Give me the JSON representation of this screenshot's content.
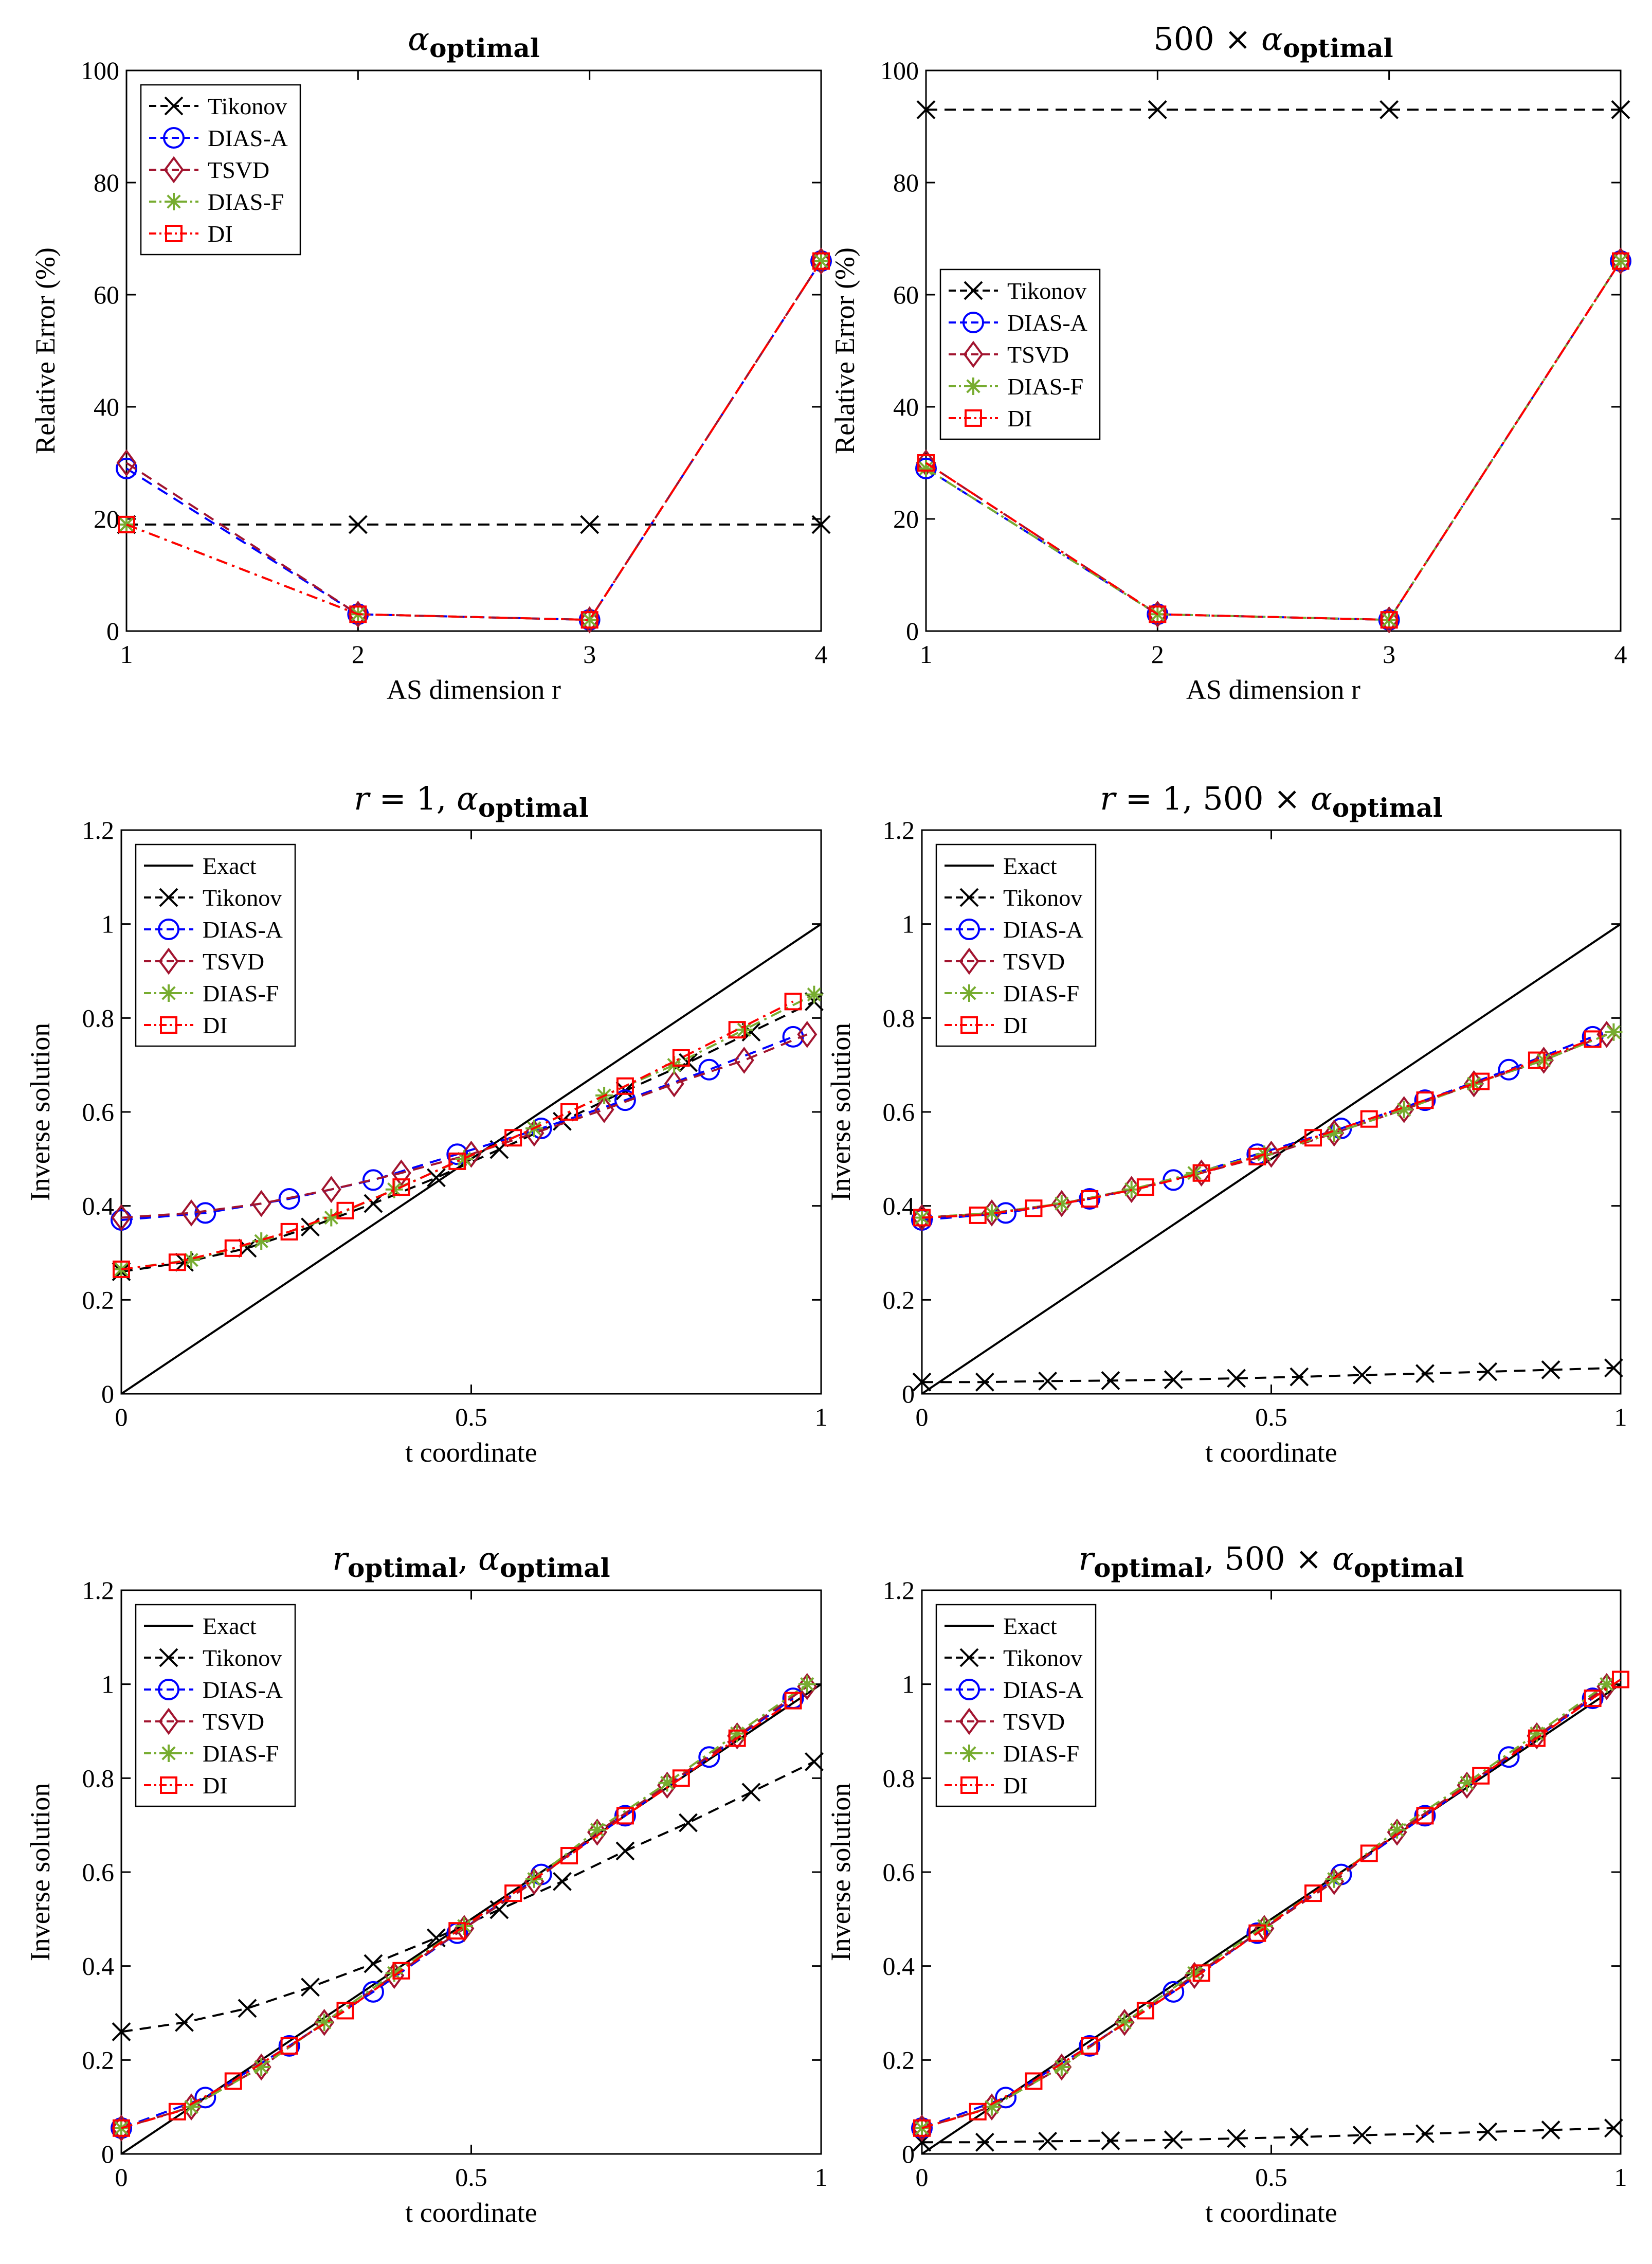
{
  "colors": {
    "exact": "#000000",
    "tikonov": "#000000",
    "dias_a": "#0000ff",
    "tsvd": "#a2142f",
    "dias_f": "#77ac30",
    "di": "#ff0000"
  },
  "series_names": {
    "exact": "Exact",
    "tikonov": "Tikonov",
    "dias_a": "DIAS-A",
    "tsvd": "TSVD",
    "dias_f": "DIAS-F",
    "di": "DI"
  },
  "chart_data": [
    {
      "type": "line",
      "title": {
        "main": "α",
        "sub": "optimal",
        "prefix": ""
      },
      "xlabel": "AS dimension r",
      "ylabel": "Relative Error (%)",
      "xlim": [
        1,
        4
      ],
      "ylim": [
        0,
        100
      ],
      "xticks": [
        1,
        2,
        3,
        4
      ],
      "xtick_labels": [
        "1",
        "2",
        "3",
        "4"
      ],
      "yticks": [
        0,
        20,
        40,
        60,
        80,
        100
      ],
      "ytick_labels": [
        "0",
        "20",
        "40",
        "60",
        "80",
        "100"
      ],
      "legend_position": "top-left",
      "legend": [
        "Tikonov",
        "DIAS-A",
        "TSVD",
        "DIAS-F",
        "DI"
      ],
      "series": [
        {
          "name": "Tikonov",
          "key": "tikonov",
          "x": [
            1,
            2,
            3,
            4
          ],
          "values": [
            19,
            19,
            19,
            19
          ]
        },
        {
          "name": "DIAS-A",
          "key": "dias_a",
          "x": [
            1,
            2,
            3,
            4
          ],
          "values": [
            29,
            3,
            2,
            66
          ]
        },
        {
          "name": "TSVD",
          "key": "tsvd",
          "x": [
            1,
            2,
            3,
            4
          ],
          "values": [
            30,
            3,
            2,
            66
          ]
        },
        {
          "name": "DIAS-F",
          "key": "dias_f",
          "x": [
            1,
            2,
            3,
            4
          ],
          "values": [
            19,
            3,
            2,
            66
          ]
        },
        {
          "name": "DI",
          "key": "di",
          "x": [
            1,
            2,
            3,
            4
          ],
          "values": [
            19,
            3,
            2,
            66
          ]
        }
      ]
    },
    {
      "type": "line",
      "title": {
        "main": "α",
        "sub": "optimal",
        "prefix": "500 × "
      },
      "xlabel": "AS dimension r",
      "ylabel": "Relative Error (%)",
      "xlim": [
        1,
        4
      ],
      "ylim": [
        0,
        100
      ],
      "xticks": [
        1,
        2,
        3,
        4
      ],
      "xtick_labels": [
        "1",
        "2",
        "3",
        "4"
      ],
      "yticks": [
        0,
        20,
        40,
        60,
        80,
        100
      ],
      "ytick_labels": [
        "0",
        "20",
        "40",
        "60",
        "80",
        "100"
      ],
      "legend_position": "middle-left",
      "legend": [
        "Tikonov",
        "DIAS-A",
        "TSVD",
        "DIAS-F",
        "DI"
      ],
      "series": [
        {
          "name": "Tikonov",
          "key": "tikonov",
          "x": [
            1,
            2,
            3,
            4
          ],
          "values": [
            93,
            93,
            93,
            93
          ]
        },
        {
          "name": "DIAS-A",
          "key": "dias_a",
          "x": [
            1,
            2,
            3,
            4
          ],
          "values": [
            29,
            3,
            2,
            66
          ]
        },
        {
          "name": "TSVD",
          "key": "tsvd",
          "x": [
            1,
            2,
            3,
            4
          ],
          "values": [
            30,
            3,
            2,
            66
          ]
        },
        {
          "name": "DIAS-F",
          "key": "dias_f",
          "x": [
            1,
            2,
            3,
            4
          ],
          "values": [
            29,
            3,
            2,
            66
          ]
        },
        {
          "name": "DI",
          "key": "di",
          "x": [
            1,
            2,
            3,
            4
          ],
          "values": [
            30,
            3,
            2,
            66
          ]
        }
      ]
    },
    {
      "type": "line",
      "title": {
        "main": "α",
        "sub": "optimal",
        "prefix": "r = 1, "
      },
      "xlabel": "t coordinate",
      "ylabel": "Inverse solution",
      "xlim": [
        0,
        1
      ],
      "ylim": [
        0,
        1.2
      ],
      "xticks": [
        0,
        0.5,
        1
      ],
      "xtick_labels": [
        "0",
        "0.5",
        "1"
      ],
      "yticks": [
        0,
        0.2,
        0.4,
        0.6,
        0.8,
        1,
        1.2
      ],
      "ytick_labels": [
        "0",
        "0.2",
        "0.4",
        "0.6",
        "0.8",
        "1",
        "1.2"
      ],
      "legend_position": "top-left",
      "legend": [
        "Exact",
        "Tikonov",
        "DIAS-A",
        "TSVD",
        "DIAS-F",
        "DI"
      ],
      "series": [
        {
          "name": "Exact",
          "key": "exact",
          "x": [
            0,
            1
          ],
          "values": [
            0,
            1
          ]
        },
        {
          "name": "Tikonov",
          "key": "tikonov",
          "x": [
            0,
            0.09,
            0.18,
            0.27,
            0.36,
            0.45,
            0.54,
            0.63,
            0.72,
            0.81,
            0.9,
            0.99
          ],
          "values": [
            0.26,
            0.28,
            0.31,
            0.355,
            0.405,
            0.46,
            0.52,
            0.58,
            0.645,
            0.705,
            0.77,
            0.835
          ]
        },
        {
          "name": "DIAS-A",
          "key": "dias_a",
          "x": [
            0,
            0.12,
            0.24,
            0.36,
            0.48,
            0.6,
            0.72,
            0.84,
            0.96
          ],
          "values": [
            0.37,
            0.385,
            0.415,
            0.455,
            0.51,
            0.565,
            0.625,
            0.69,
            0.76
          ]
        },
        {
          "name": "TSVD",
          "key": "tsvd",
          "x": [
            0,
            0.1,
            0.2,
            0.3,
            0.4,
            0.5,
            0.59,
            0.69,
            0.79,
            0.89,
            0.98
          ],
          "values": [
            0.375,
            0.385,
            0.405,
            0.435,
            0.47,
            0.51,
            0.555,
            0.605,
            0.66,
            0.71,
            0.765
          ]
        },
        {
          "name": "DIAS-F",
          "key": "dias_f",
          "x": [
            0,
            0.1,
            0.2,
            0.3,
            0.39,
            0.49,
            0.59,
            0.69,
            0.79,
            0.89,
            0.99
          ],
          "values": [
            0.265,
            0.285,
            0.325,
            0.375,
            0.435,
            0.5,
            0.565,
            0.635,
            0.7,
            0.775,
            0.85
          ]
        },
        {
          "name": "DI",
          "key": "di",
          "x": [
            0,
            0.08,
            0.16,
            0.24,
            0.32,
            0.4,
            0.48,
            0.56,
            0.64,
            0.72,
            0.8,
            0.88,
            0.96
          ],
          "values": [
            0.265,
            0.28,
            0.31,
            0.345,
            0.39,
            0.44,
            0.495,
            0.545,
            0.6,
            0.655,
            0.715,
            0.775,
            0.835
          ]
        }
      ]
    },
    {
      "type": "line",
      "title": {
        "main": "α",
        "sub": "optimal",
        "prefix": "r = 1, 500 × "
      },
      "xlabel": "t coordinate",
      "ylabel": "Inverse solution",
      "xlim": [
        0,
        1
      ],
      "ylim": [
        0,
        1.2
      ],
      "xticks": [
        0,
        0.5,
        1
      ],
      "xtick_labels": [
        "0",
        "0.5",
        "1"
      ],
      "yticks": [
        0,
        0.2,
        0.4,
        0.6,
        0.8,
        1,
        1.2
      ],
      "ytick_labels": [
        "0",
        "0.2",
        "0.4",
        "0.6",
        "0.8",
        "1",
        "1.2"
      ],
      "legend_position": "top-left",
      "legend": [
        "Exact",
        "Tikonov",
        "DIAS-A",
        "TSVD",
        "DIAS-F",
        "DI"
      ],
      "series": [
        {
          "name": "Exact",
          "key": "exact",
          "x": [
            0,
            1
          ],
          "values": [
            0,
            1
          ]
        },
        {
          "name": "Tikonov",
          "key": "tikonov",
          "x": [
            0,
            0.09,
            0.18,
            0.27,
            0.36,
            0.45,
            0.54,
            0.63,
            0.72,
            0.81,
            0.9,
            0.99
          ],
          "values": [
            0.025,
            0.025,
            0.027,
            0.028,
            0.03,
            0.033,
            0.036,
            0.04,
            0.043,
            0.047,
            0.051,
            0.055
          ]
        },
        {
          "name": "DIAS-A",
          "key": "dias_a",
          "x": [
            0,
            0.12,
            0.24,
            0.36,
            0.48,
            0.6,
            0.72,
            0.84,
            0.96
          ],
          "values": [
            0.37,
            0.385,
            0.415,
            0.455,
            0.51,
            0.565,
            0.625,
            0.69,
            0.76
          ]
        },
        {
          "name": "TSVD",
          "key": "tsvd",
          "x": [
            0,
            0.1,
            0.2,
            0.3,
            0.4,
            0.5,
            0.59,
            0.69,
            0.79,
            0.89,
            0.98
          ],
          "values": [
            0.375,
            0.385,
            0.405,
            0.435,
            0.47,
            0.51,
            0.555,
            0.605,
            0.66,
            0.71,
            0.765
          ]
        },
        {
          "name": "DIAS-F",
          "key": "dias_f",
          "x": [
            0,
            0.1,
            0.2,
            0.3,
            0.39,
            0.49,
            0.59,
            0.69,
            0.79,
            0.89,
            0.99
          ],
          "values": [
            0.375,
            0.385,
            0.405,
            0.435,
            0.47,
            0.51,
            0.555,
            0.605,
            0.66,
            0.71,
            0.77
          ]
        },
        {
          "name": "DI",
          "key": "di",
          "x": [
            0,
            0.08,
            0.16,
            0.24,
            0.32,
            0.4,
            0.48,
            0.56,
            0.64,
            0.72,
            0.8,
            0.88,
            0.96
          ],
          "values": [
            0.375,
            0.38,
            0.395,
            0.415,
            0.44,
            0.47,
            0.505,
            0.545,
            0.585,
            0.625,
            0.665,
            0.71,
            0.755
          ]
        }
      ]
    },
    {
      "type": "line",
      "title": {
        "main": "α",
        "sub": "optimal",
        "prefix": "r",
        "prefix_sub": "optimal",
        "joiner": ", "
      },
      "xlabel": "t coordinate",
      "ylabel": "Inverse solution",
      "xlim": [
        0,
        1
      ],
      "ylim": [
        0,
        1.2
      ],
      "xticks": [
        0,
        0.5,
        1
      ],
      "xtick_labels": [
        "0",
        "0.5",
        "1"
      ],
      "yticks": [
        0,
        0.2,
        0.4,
        0.6,
        0.8,
        1,
        1.2
      ],
      "ytick_labels": [
        "0",
        "0.2",
        "0.4",
        "0.6",
        "0.8",
        "1",
        "1.2"
      ],
      "legend_position": "top-left",
      "legend": [
        "Exact",
        "Tikonov",
        "DIAS-A",
        "TSVD",
        "DIAS-F",
        "DI"
      ],
      "series": [
        {
          "name": "Exact",
          "key": "exact",
          "x": [
            0,
            1
          ],
          "values": [
            0,
            1
          ]
        },
        {
          "name": "Tikonov",
          "key": "tikonov",
          "x": [
            0,
            0.09,
            0.18,
            0.27,
            0.36,
            0.45,
            0.54,
            0.63,
            0.72,
            0.81,
            0.9,
            0.99
          ],
          "values": [
            0.26,
            0.28,
            0.31,
            0.355,
            0.405,
            0.46,
            0.52,
            0.58,
            0.645,
            0.705,
            0.77,
            0.835
          ]
        },
        {
          "name": "DIAS-A",
          "key": "dias_a",
          "x": [
            0,
            0.12,
            0.24,
            0.36,
            0.48,
            0.6,
            0.72,
            0.84,
            0.96
          ],
          "values": [
            0.055,
            0.12,
            0.23,
            0.345,
            0.47,
            0.595,
            0.72,
            0.845,
            0.97
          ]
        },
        {
          "name": "TSVD",
          "key": "tsvd",
          "x": [
            0,
            0.1,
            0.2,
            0.29,
            0.39,
            0.49,
            0.59,
            0.68,
            0.78,
            0.88,
            0.98
          ],
          "values": [
            0.055,
            0.1,
            0.185,
            0.28,
            0.38,
            0.48,
            0.58,
            0.685,
            0.785,
            0.89,
            0.995
          ]
        },
        {
          "name": "DIAS-F",
          "key": "dias_f",
          "x": [
            0,
            0.1,
            0.2,
            0.29,
            0.39,
            0.49,
            0.59,
            0.68,
            0.78,
            0.88,
            0.98
          ],
          "values": [
            0.055,
            0.1,
            0.185,
            0.28,
            0.385,
            0.485,
            0.585,
            0.69,
            0.79,
            0.895,
            1.0
          ]
        },
        {
          "name": "DI",
          "key": "di",
          "x": [
            0,
            0.08,
            0.16,
            0.24,
            0.32,
            0.4,
            0.48,
            0.56,
            0.64,
            0.72,
            0.8,
            0.88,
            0.96
          ],
          "values": [
            0.055,
            0.09,
            0.155,
            0.23,
            0.305,
            0.39,
            0.475,
            0.555,
            0.635,
            0.72,
            0.8,
            0.885,
            0.965
          ]
        }
      ]
    },
    {
      "type": "line",
      "title": {
        "main": "α",
        "sub": "optimal",
        "prefix": "r",
        "prefix_sub": "optimal",
        "joiner": ", 500 × "
      },
      "xlabel": "t coordinate",
      "ylabel": "Inverse solution",
      "xlim": [
        0,
        1
      ],
      "ylim": [
        0,
        1.2
      ],
      "xticks": [
        0,
        0.5,
        1
      ],
      "xtick_labels": [
        "0",
        "0.5",
        "1"
      ],
      "yticks": [
        0,
        0.2,
        0.4,
        0.6,
        0.8,
        1,
        1.2
      ],
      "ytick_labels": [
        "0",
        "0.2",
        "0.4",
        "0.6",
        "0.8",
        "1",
        "1.2"
      ],
      "legend_position": "top-left",
      "legend": [
        "Exact",
        "Tikonov",
        "DIAS-A",
        "TSVD",
        "DIAS-F",
        "DI"
      ],
      "series": [
        {
          "name": "Exact",
          "key": "exact",
          "x": [
            0,
            1
          ],
          "values": [
            0,
            1
          ]
        },
        {
          "name": "Tikonov",
          "key": "tikonov",
          "x": [
            0,
            0.09,
            0.18,
            0.27,
            0.36,
            0.45,
            0.54,
            0.63,
            0.72,
            0.81,
            0.9,
            0.99
          ],
          "values": [
            0.025,
            0.025,
            0.027,
            0.028,
            0.03,
            0.033,
            0.036,
            0.04,
            0.043,
            0.047,
            0.051,
            0.055
          ]
        },
        {
          "name": "DIAS-A",
          "key": "dias_a",
          "x": [
            0,
            0.12,
            0.24,
            0.36,
            0.48,
            0.6,
            0.72,
            0.84,
            0.96
          ],
          "values": [
            0.055,
            0.12,
            0.23,
            0.345,
            0.47,
            0.595,
            0.72,
            0.845,
            0.97
          ]
        },
        {
          "name": "TSVD",
          "key": "tsvd",
          "x": [
            0,
            0.1,
            0.2,
            0.29,
            0.39,
            0.49,
            0.59,
            0.68,
            0.78,
            0.88,
            0.98
          ],
          "values": [
            0.055,
            0.1,
            0.185,
            0.28,
            0.38,
            0.48,
            0.58,
            0.685,
            0.785,
            0.89,
            0.995
          ]
        },
        {
          "name": "DIAS-F",
          "key": "dias_f",
          "x": [
            0,
            0.1,
            0.2,
            0.29,
            0.39,
            0.49,
            0.59,
            0.68,
            0.78,
            0.88,
            0.98
          ],
          "values": [
            0.055,
            0.1,
            0.185,
            0.28,
            0.385,
            0.485,
            0.585,
            0.69,
            0.79,
            0.895,
            1.0
          ]
        },
        {
          "name": "DI",
          "key": "di",
          "x": [
            0,
            0.08,
            0.16,
            0.24,
            0.32,
            0.4,
            0.48,
            0.56,
            0.64,
            0.72,
            0.8,
            0.88,
            0.96,
            1.0
          ],
          "values": [
            0.055,
            0.09,
            0.155,
            0.23,
            0.305,
            0.385,
            0.47,
            0.555,
            0.64,
            0.72,
            0.805,
            0.885,
            0.97,
            1.01
          ]
        }
      ]
    }
  ]
}
